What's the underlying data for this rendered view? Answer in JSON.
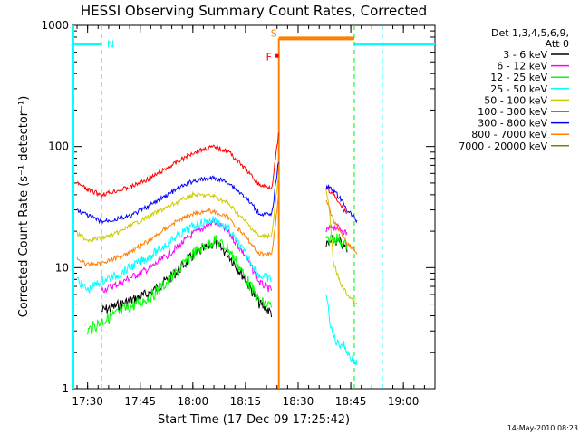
{
  "chart_data": {
    "type": "line",
    "title": "HESSI Observing Summary Count Rates, Corrected",
    "xlabel": "Start Time (17-Dec-09 17:25:42)",
    "ylabel": "Corrected Count Rate (s⁻¹ detector⁻¹)",
    "yscale": "log",
    "ylim": [
      1,
      1000
    ],
    "y_ticks": [
      "1",
      "10",
      "100",
      "1000"
    ],
    "x_ticks": [
      "17:30",
      "17:45",
      "18:00",
      "18:15",
      "18:30",
      "18:45",
      "19:00"
    ],
    "x_tick_minutes": [
      30,
      45,
      60,
      75,
      90,
      105,
      120
    ],
    "xlim_minutes": [
      25.7,
      129
    ],
    "footer": "14-May-2010 08:23",
    "legend": {
      "header": [
        "Det 1,3,4,5,6,9,",
        "Att 0"
      ],
      "placement": "right"
    },
    "series": [
      {
        "name": "3 - 6 keV",
        "color": "#000000",
        "points": [
          [
            34,
            4.4
          ],
          [
            38,
            4.8
          ],
          [
            42,
            5.3
          ],
          [
            48,
            6.2
          ],
          [
            54,
            8.5
          ],
          [
            60,
            12.5
          ],
          [
            66,
            16
          ],
          [
            70,
            13
          ],
          [
            75,
            8
          ],
          [
            79,
            5
          ],
          [
            82.5,
            4.2
          ]
        ],
        "points2": [
          [
            98,
            15
          ],
          [
            100,
            17
          ],
          [
            102,
            16
          ],
          [
            104,
            14
          ]
        ]
      },
      {
        "name": "6 - 12 keV",
        "color": "#ff00ff",
        "points": [
          [
            34,
            6.5
          ],
          [
            38,
            7.2
          ],
          [
            42,
            8.2
          ],
          [
            48,
            10
          ],
          [
            54,
            13.5
          ],
          [
            60,
            19
          ],
          [
            66,
            24
          ],
          [
            70,
            20
          ],
          [
            75,
            12.5
          ],
          [
            79,
            7.5
          ],
          [
            82.5,
            6.5
          ]
        ],
        "points2": [
          [
            98,
            20
          ],
          [
            100,
            22
          ],
          [
            102,
            21
          ],
          [
            104,
            19
          ]
        ]
      },
      {
        "name": "12 - 25 keV",
        "color": "#00ff00",
        "points": [
          [
            30,
            3
          ],
          [
            34,
            3.6
          ],
          [
            38,
            4.1
          ],
          [
            42,
            4.7
          ],
          [
            48,
            5.8
          ],
          [
            54,
            8.2
          ],
          [
            60,
            13
          ],
          [
            66,
            17
          ],
          [
            70,
            14.5
          ],
          [
            75,
            8.3
          ],
          [
            79,
            5.2
          ],
          [
            82.5,
            4.8
          ]
        ],
        "points2": [
          [
            98,
            16
          ],
          [
            100,
            18
          ],
          [
            102,
            17
          ],
          [
            104,
            15
          ]
        ]
      },
      {
        "name": "25 - 50 keV",
        "color": "#00ffff",
        "points": [
          [
            27,
            8
          ],
          [
            30,
            6.5
          ],
          [
            34,
            7.8
          ],
          [
            38,
            8.5
          ],
          [
            42,
            10
          ],
          [
            48,
            12.5
          ],
          [
            54,
            17
          ],
          [
            60,
            22
          ],
          [
            66,
            25
          ],
          [
            70,
            21
          ],
          [
            75,
            13
          ],
          [
            79,
            8.6
          ],
          [
            82.5,
            8
          ]
        ],
        "points2": [
          [
            98,
            6
          ],
          [
            99.5,
            3
          ],
          [
            101,
            2.4
          ],
          [
            103,
            2.3
          ],
          [
            105,
            1.8
          ],
          [
            107,
            1.6
          ]
        ]
      },
      {
        "name": "50 - 100 keV",
        "color": "#cccc00",
        "points": [
          [
            27,
            19
          ],
          [
            30,
            17
          ],
          [
            34,
            17.5
          ],
          [
            38,
            19
          ],
          [
            42,
            22
          ],
          [
            48,
            27
          ],
          [
            54,
            33
          ],
          [
            60,
            40
          ],
          [
            66,
            39
          ],
          [
            70,
            34
          ],
          [
            75,
            24
          ],
          [
            79,
            18
          ],
          [
            82.5,
            18.5
          ],
          [
            84.5,
            60
          ]
        ],
        "points2": [
          [
            98,
            42
          ],
          [
            99,
            30
          ],
          [
            100,
            11
          ],
          [
            102,
            7.5
          ],
          [
            104,
            6
          ],
          [
            107,
            4.8
          ]
        ]
      },
      {
        "name": "100 - 300 keV",
        "color": "#ff0000",
        "points": [
          [
            27,
            50
          ],
          [
            30,
            44
          ],
          [
            34,
            40
          ],
          [
            38,
            43
          ],
          [
            42,
            46
          ],
          [
            48,
            55
          ],
          [
            54,
            70
          ],
          [
            60,
            89
          ],
          [
            64,
            97
          ],
          [
            66,
            99
          ],
          [
            70,
            92
          ],
          [
            75,
            65
          ],
          [
            79,
            48
          ],
          [
            82.5,
            46
          ],
          [
            84.5,
            130
          ]
        ],
        "points2": [
          [
            98,
            45
          ],
          [
            100,
            40
          ],
          [
            102,
            33
          ],
          [
            104,
            28
          ]
        ]
      },
      {
        "name": "300 - 800 keV",
        "color": "#0000ff",
        "points": [
          [
            27,
            30
          ],
          [
            30,
            27
          ],
          [
            34,
            24
          ],
          [
            38,
            25
          ],
          [
            42,
            26.5
          ],
          [
            48,
            33
          ],
          [
            54,
            42
          ],
          [
            60,
            52
          ],
          [
            64,
            54
          ],
          [
            66,
            55
          ],
          [
            70,
            51
          ],
          [
            75,
            38
          ],
          [
            79,
            28
          ],
          [
            82.5,
            27
          ],
          [
            84.5,
            80
          ]
        ],
        "points2": [
          [
            98,
            45
          ],
          [
            99,
            47
          ],
          [
            100,
            44
          ],
          [
            102,
            37
          ],
          [
            104,
            30
          ],
          [
            107,
            24
          ]
        ]
      },
      {
        "name": "800 - 7000 keV",
        "color": "#ff8000",
        "points": [
          [
            27,
            12
          ],
          [
            30,
            10.5
          ],
          [
            34,
            11
          ],
          [
            38,
            12
          ],
          [
            42,
            13.5
          ],
          [
            48,
            17
          ],
          [
            54,
            23
          ],
          [
            60,
            28
          ],
          [
            64,
            29.5
          ],
          [
            66,
            29
          ],
          [
            70,
            26
          ],
          [
            75,
            18
          ],
          [
            79,
            13
          ],
          [
            82.5,
            13
          ],
          [
            84.5,
            40
          ]
        ],
        "points2": [
          [
            98,
            35
          ],
          [
            99,
            30
          ],
          [
            100,
            25
          ],
          [
            102,
            20
          ],
          [
            104,
            16
          ],
          [
            107,
            13
          ]
        ]
      },
      {
        "name": "7000 - 20000 keV",
        "color": "#808000",
        "points": [],
        "points2": []
      }
    ],
    "annotations": [
      {
        "text": "N",
        "color": "#00ffff"
      },
      {
        "text": "S",
        "color": "#ff8000"
      },
      {
        "text": "F",
        "color": "#ff0000"
      }
    ],
    "night_lines_minutes": [
      34,
      106,
      114
    ],
    "night_segments": [
      [
        25.7,
        34
      ],
      [
        106,
        114
      ],
      [
        114,
        129
      ]
    ],
    "night_level": 700,
    "saa_segment": [
      84.5,
      106
    ],
    "saa_level": 780,
    "flare_segment": [
      83.3,
      84.5
    ],
    "flare_level": 560,
    "saa_vline_minutes": 84.5
  }
}
